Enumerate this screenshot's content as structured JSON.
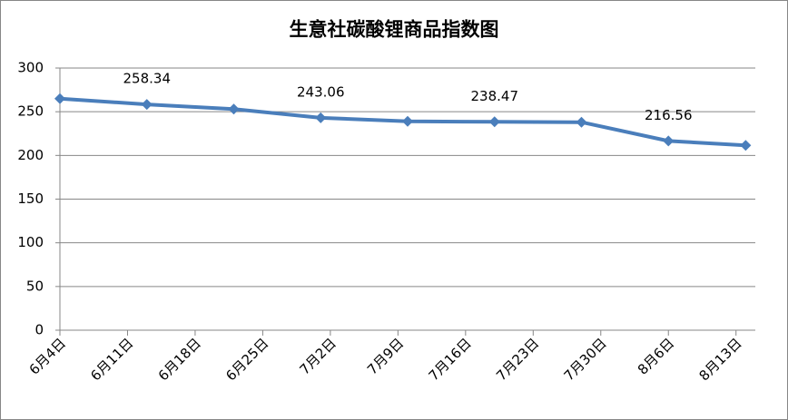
{
  "chart_data": {
    "type": "line",
    "title": "生意社碳酸锂商品指数图",
    "x": [
      0,
      9,
      18,
      27,
      36,
      45,
      54,
      63,
      71
    ],
    "xlim": [
      0,
      72
    ],
    "xticks": [
      {
        "value": 0,
        "label": "6月4日"
      },
      {
        "value": 7,
        "label": "6月11日"
      },
      {
        "value": 14,
        "label": "6月18日"
      },
      {
        "value": 21,
        "label": "6月25日"
      },
      {
        "value": 28,
        "label": "7月2日"
      },
      {
        "value": 35,
        "label": "7月9日"
      },
      {
        "value": 42,
        "label": "7月16日"
      },
      {
        "value": 49,
        "label": "7月23日"
      },
      {
        "value": 56,
        "label": "7月30日"
      },
      {
        "value": 63,
        "label": "8月6日"
      },
      {
        "value": 70,
        "label": "8月13日"
      }
    ],
    "series": [
      {
        "color": "#4a7ebb",
        "values": [
          265,
          258.34,
          253,
          243.06,
          239,
          238.47,
          238,
          216.56,
          211.5
        ],
        "value_labels": [
          null,
          "258.34",
          null,
          "243.06",
          null,
          "238.47",
          null,
          "216.56",
          null
        ]
      }
    ],
    "ylim": [
      0,
      300
    ],
    "yticks": [
      0,
      50,
      100,
      150,
      200,
      250,
      300
    ],
    "grid": true
  }
}
